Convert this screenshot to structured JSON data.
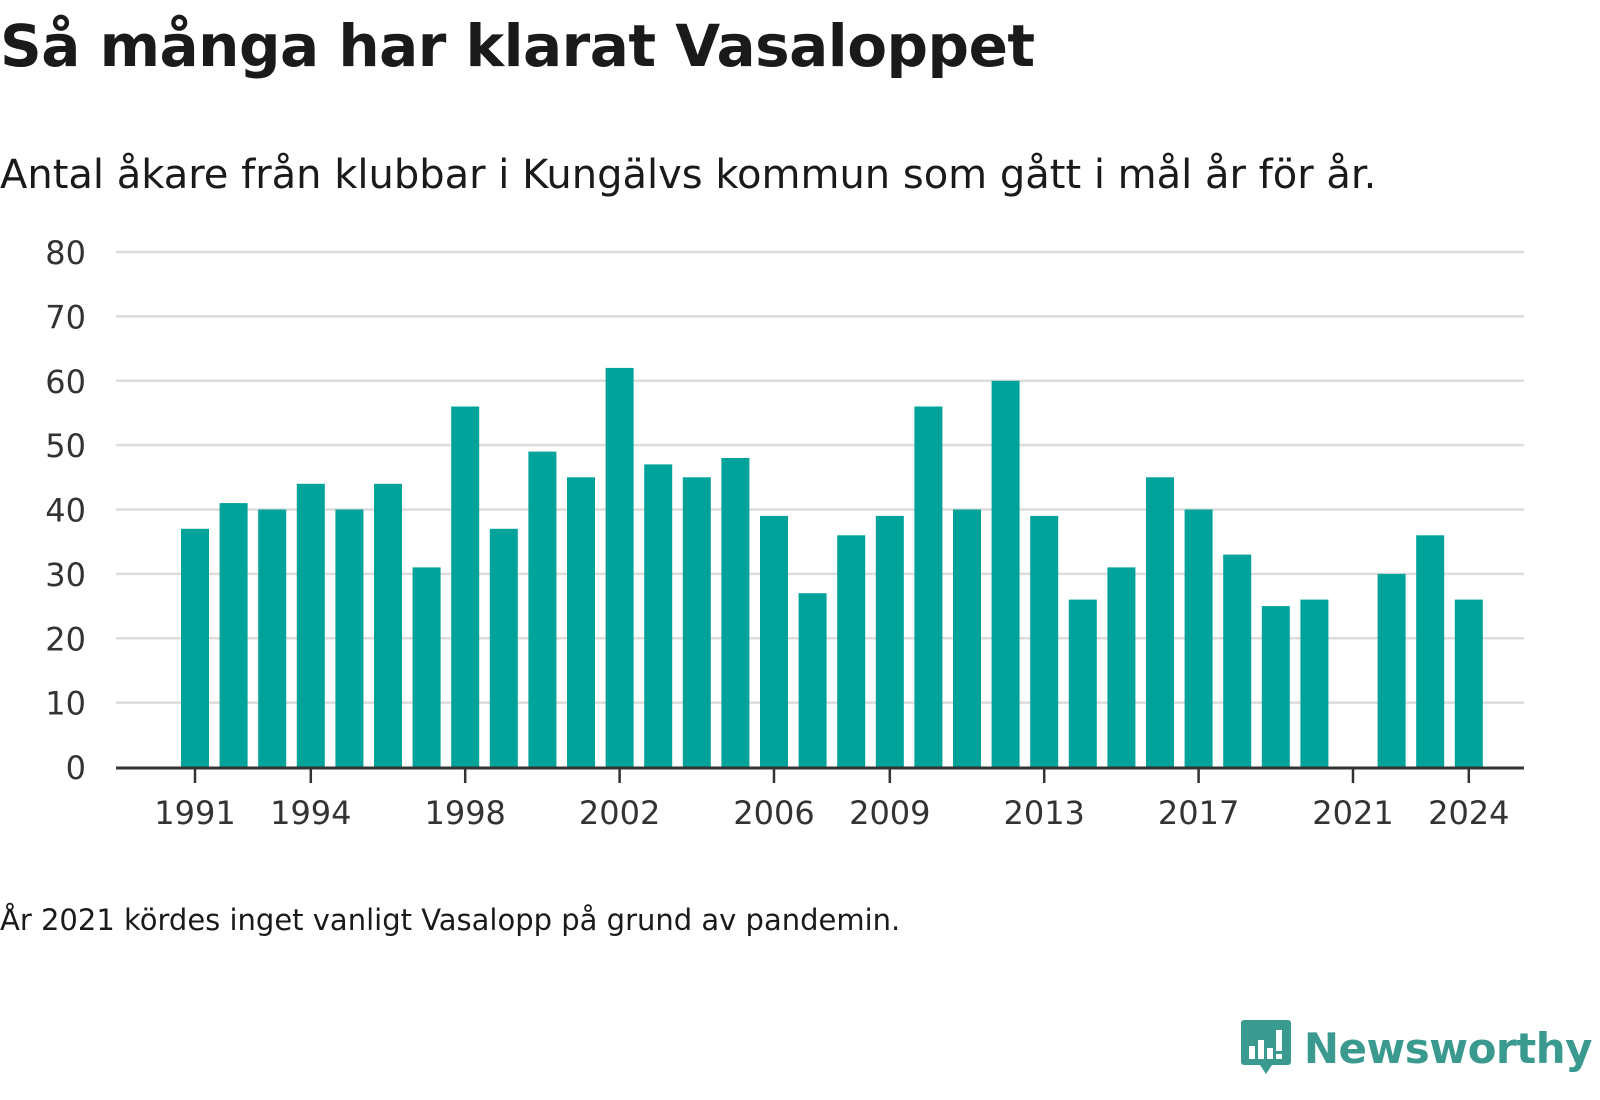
{
  "title": "Så många har klarat Vasaloppet",
  "subtitle": "Antal åkare från klubbar i Kungälvs kommun som gått i mål år för år.",
  "note": "År 2021 kördes inget vanligt Vasalopp på grund av pandemin.",
  "brand": {
    "name": "Newsworthy",
    "color": "#3a9a8f"
  },
  "chart_data": {
    "type": "bar",
    "bar_color": "#00a39a",
    "categories": [
      "1991",
      "1992",
      "1993",
      "1994",
      "1995",
      "1996",
      "1997",
      "1998",
      "1999",
      "2000",
      "2001",
      "2002",
      "2003",
      "2004",
      "2005",
      "2006",
      "2007",
      "2008",
      "2009",
      "2010",
      "2011",
      "2012",
      "2013",
      "2014",
      "2015",
      "2016",
      "2017",
      "2018",
      "2019",
      "2020",
      "2021",
      "2022",
      "2023",
      "2024"
    ],
    "values": [
      37,
      41,
      40,
      44,
      40,
      44,
      31,
      56,
      37,
      49,
      45,
      62,
      47,
      45,
      48,
      39,
      27,
      36,
      39,
      56,
      40,
      60,
      39,
      26,
      31,
      45,
      40,
      33,
      25,
      26,
      null,
      30,
      36,
      26
    ],
    "x_tick_labels": [
      "1991",
      "1994",
      "1998",
      "2002",
      "2006",
      "2009",
      "2013",
      "2017",
      "2021",
      "2024"
    ],
    "y_ticks": [
      0,
      10,
      20,
      30,
      40,
      50,
      60,
      70,
      80
    ],
    "ylim": [
      0,
      80
    ],
    "grid": true,
    "legend": "none"
  }
}
